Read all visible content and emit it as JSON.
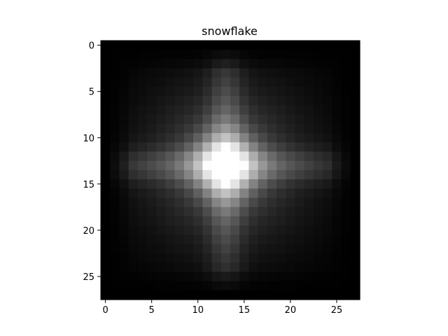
{
  "chart_data": {
    "type": "heatmap",
    "title": "snowflake",
    "xlabel": "",
    "ylabel": "",
    "rows": 28,
    "cols": 28,
    "colormap": "gray",
    "value_range": [
      0,
      1
    ],
    "xlim": [
      -0.5,
      27.5
    ],
    "ylim": [
      27.5,
      -0.5
    ],
    "x_ticks": [
      0,
      5,
      10,
      15,
      20,
      25
    ],
    "y_ticks": [
      0,
      5,
      10,
      15,
      20,
      25
    ],
    "x_tick_labels": [
      "0",
      "5",
      "10",
      "15",
      "20",
      "25"
    ],
    "y_tick_labels": [
      "0",
      "5",
      "10",
      "15",
      "20",
      "25"
    ],
    "grid": false,
    "pattern": "bright center blob near (13,13) with a cross of brighter arms along row 13 and column 13, fading to black at the borders",
    "peak_cell": [
      13,
      13
    ],
    "peak_value": 1.0,
    "border_value": 0.0
  }
}
